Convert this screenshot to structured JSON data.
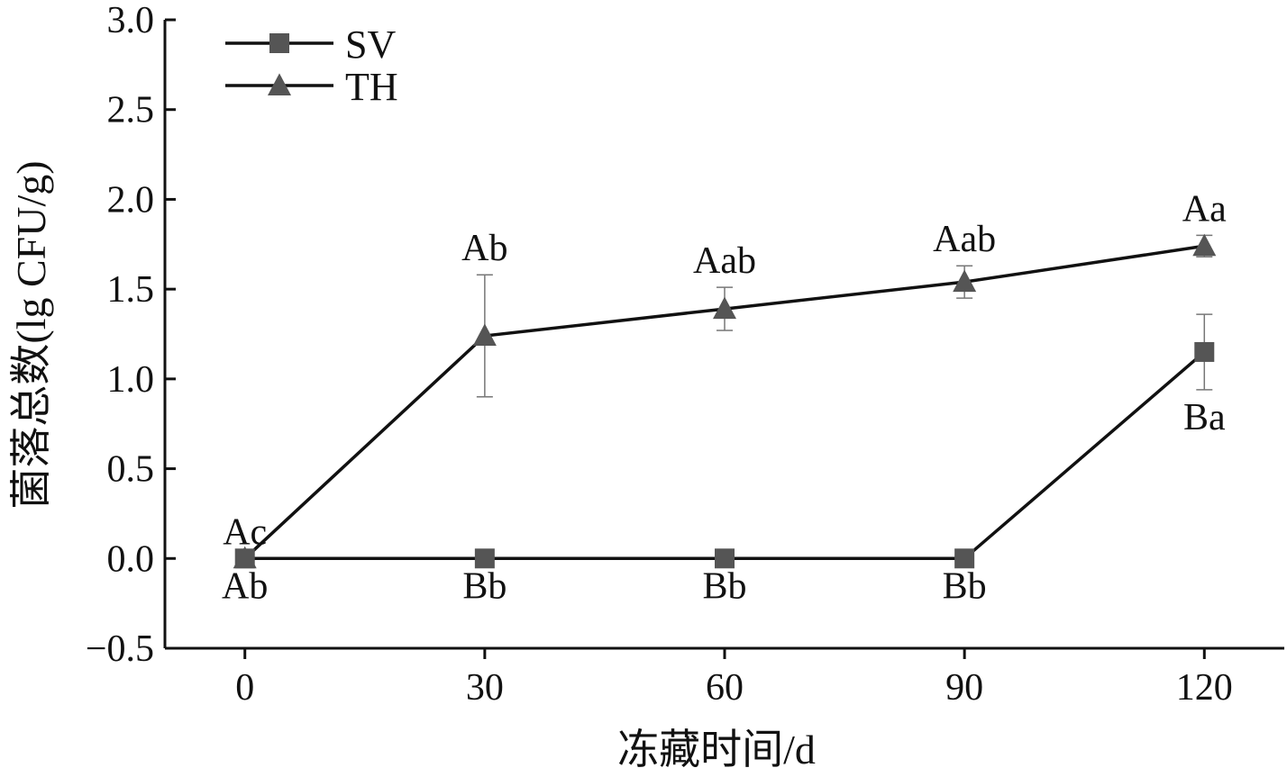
{
  "chart_data": {
    "type": "line",
    "title": "",
    "xlabel": "冻藏时间/d",
    "ylabel": "菌落总数(lg CFU/g)",
    "x": [
      0,
      30,
      60,
      90,
      120
    ],
    "x_tick_labels": [
      "0",
      "30",
      "60",
      "90",
      "120"
    ],
    "xlim": [
      -10,
      130
    ],
    "ylim": [
      -0.5,
      3.0
    ],
    "y_ticks": [
      -0.5,
      0.0,
      0.5,
      1.0,
      1.5,
      2.0,
      2.5,
      3.0
    ],
    "y_tick_labels": [
      "−0.5",
      "0.0",
      "0.5",
      "1.0",
      "1.5",
      "2.0",
      "2.5",
      "3.0"
    ],
    "grid": false,
    "legend_position": "top-left",
    "series": [
      {
        "name": "SV",
        "marker": "square",
        "color": "#555555",
        "values": [
          0.0,
          0.0,
          0.0,
          0.0,
          1.15
        ],
        "errors": [
          0.0,
          0.0,
          0.0,
          0.0,
          0.21
        ],
        "labels": [
          "Ab",
          "Bb",
          "Bb",
          "Bb",
          "Ba"
        ],
        "label_position": "below"
      },
      {
        "name": "TH",
        "marker": "triangle",
        "color": "#555555",
        "values": [
          0.0,
          1.24,
          1.39,
          1.54,
          1.74
        ],
        "errors": [
          0.0,
          0.34,
          0.12,
          0.09,
          0.06
        ],
        "labels": [
          "Ac",
          "Ab",
          "Aab",
          "Aab",
          "Aa"
        ],
        "label_position": "above"
      }
    ]
  }
}
